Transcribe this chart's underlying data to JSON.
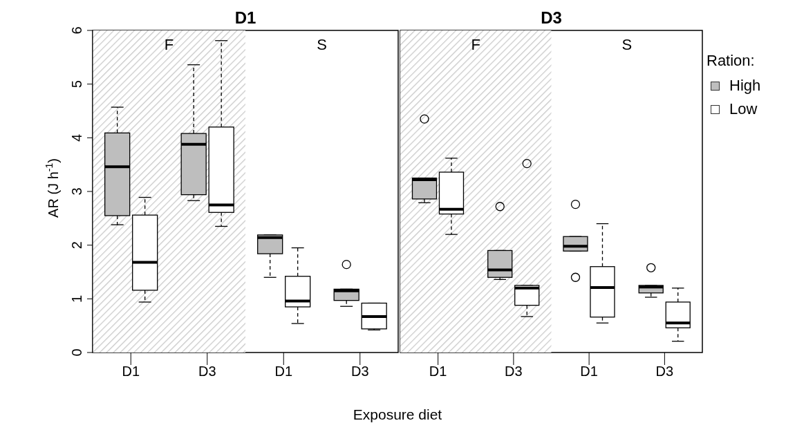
{
  "chart_data": [
    {
      "type": "box",
      "title": "D1",
      "ylabel": "AR (J h$^{-1}$)",
      "xlabel": "Exposure diet",
      "categories": [
        "D1",
        "D3",
        "D1",
        "D3"
      ],
      "ylim": [
        0,
        6
      ],
      "yticks": [
        0,
        1,
        2,
        3,
        4,
        5,
        6
      ],
      "bands": [
        {
          "axis": "x",
          "from": "D1",
          "to": "D3",
          "label": "F",
          "color": "#c8c8c8"
        }
      ],
      "annotations": [
        "S"
      ],
      "series": [
        {
          "color": "#bebebe",
          "boxes": [
            {
              "low": 2.38,
              "q1": 2.55,
              "median": 3.46,
              "q3": 4.09,
              "high": 4.57
            },
            {
              "low": 2.83,
              "q1": 2.94,
              "median": 3.88,
              "q3": 4.08,
              "high": 5.36
            },
            {
              "low": 1.4,
              "q1": 1.84,
              "median": 2.14,
              "q3": 2.19,
              "high": 2.19
            },
            {
              "low": 0.86,
              "q1": 0.97,
              "median": 1.15,
              "q3": 1.18,
              "high": 1.18,
              "outliers": [
                1.64
              ]
            }
          ]
        },
        {
          "color": "#ffffff",
          "boxes": [
            {
              "low": 0.94,
              "q1": 1.16,
              "median": 1.68,
              "q3": 2.56,
              "high": 2.89
            },
            {
              "low": 2.35,
              "q1": 2.61,
              "median": 2.75,
              "q3": 4.2,
              "high": 5.81
            },
            {
              "low": 0.54,
              "q1": 0.85,
              "median": 0.96,
              "q3": 1.42,
              "high": 1.95
            },
            {
              "low": 0.42,
              "q1": 0.44,
              "median": 0.67,
              "q3": 0.92,
              "high": 0.92
            }
          ]
        }
      ]
    },
    {
      "type": "box",
      "title": "D3",
      "categories": [
        "D1",
        "D3",
        "D1",
        "D3"
      ],
      "ylim": [
        0,
        6
      ],
      "yticks": [
        0,
        1,
        2,
        3,
        4,
        5,
        6
      ],
      "tick_labels": "x",
      "legend": "right",
      "legend_title": "Ration:",
      "bands": [
        {
          "axis": "x",
          "from": "D1",
          "to": "D3",
          "label": "F",
          "color": "#c8c8c8"
        }
      ],
      "annotations": [
        "S"
      ],
      "series": [
        {
          "name": "High",
          "color": "#bebebe",
          "boxes": [
            {
              "low": 2.79,
              "q1": 2.86,
              "median": 3.22,
              "q3": 3.25,
              "high": 3.25,
              "outliers": [
                4.35
              ]
            },
            {
              "low": 1.36,
              "q1": 1.4,
              "median": 1.54,
              "q3": 1.9,
              "high": 1.9,
              "outliers": [
                2.72
              ]
            },
            {
              "low": 1.89,
              "q1": 1.89,
              "median": 1.98,
              "q3": 2.16,
              "high": 2.16,
              "outliers": [
                2.76,
                1.4
              ]
            },
            {
              "low": 1.03,
              "q1": 1.11,
              "median": 1.22,
              "q3": 1.25,
              "high": 1.25,
              "outliers": [
                1.58
              ]
            }
          ]
        },
        {
          "name": "Low",
          "color": "#ffffff",
          "boxes": [
            {
              "low": 2.2,
              "q1": 2.58,
              "median": 2.67,
              "q3": 3.36,
              "high": 3.62
            },
            {
              "low": 0.67,
              "q1": 0.88,
              "median": 1.2,
              "q3": 1.25,
              "high": 1.25,
              "outliers": [
                3.52
              ]
            },
            {
              "low": 0.55,
              "q1": 0.66,
              "median": 1.21,
              "q3": 1.6,
              "high": 2.4
            },
            {
              "low": 0.21,
              "q1": 0.46,
              "median": 0.55,
              "q3": 0.94,
              "high": 1.2
            }
          ]
        }
      ]
    }
  ]
}
